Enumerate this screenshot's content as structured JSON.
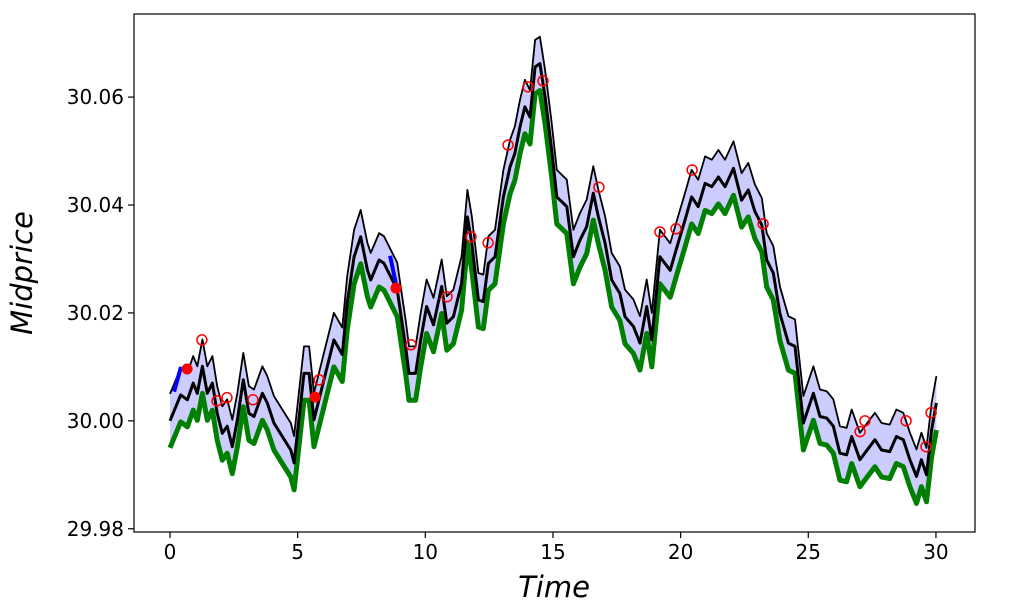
{
  "chart_data": {
    "type": "line",
    "title": "",
    "xlabel": "Time",
    "ylabel": "Midprice",
    "xlim": [
      -1.41,
      31.53
    ],
    "ylim": [
      29.9794,
      30.0754
    ],
    "xticks": [
      "0",
      "5",
      "10",
      "15",
      "20",
      "25",
      "30"
    ],
    "yticks": [
      "29.98",
      "30.00",
      "30.02",
      "30.04",
      "30.06"
    ],
    "grid": false,
    "band_half_width": 0.005,
    "colors": {
      "mid": "#000000",
      "upper": "#000000",
      "band_fill": "#ccccff",
      "lower": "#008000",
      "open_marker": "#ff0000",
      "filled_marker": "#ff0000",
      "segment": "#0000ff"
    },
    "mid": {
      "t": [
        0,
        0.42,
        0.68,
        0.91,
        1.07,
        1.27,
        1.46,
        1.66,
        1.85,
        2.05,
        2.24,
        2.44,
        2.64,
        2.87,
        3.09,
        3.29,
        3.62,
        3.81,
        4.07,
        4.4,
        4.73,
        4.86,
        5.25,
        5.45,
        5.64,
        5.9,
        6.42,
        6.75,
        6.94,
        7.21,
        7.47,
        7.73,
        7.86,
        8.19,
        8.38,
        8.9,
        9.23,
        9.36,
        9.62,
        9.82,
        10.05,
        10.32,
        10.64,
        10.84,
        11.1,
        11.42,
        11.65,
        11.82,
        12.08,
        12.27,
        12.47,
        12.73,
        13.06,
        13.32,
        13.51,
        13.71,
        13.9,
        14.1,
        14.3,
        14.49,
        14.69,
        14.95,
        15.15,
        15.54,
        15.8,
        16.06,
        16.32,
        16.58,
        16.78,
        17.04,
        17.3,
        17.62,
        17.82,
        18.15,
        18.41,
        18.67,
        18.87,
        19.19,
        19.59,
        19.85,
        20.17,
        20.43,
        20.69,
        20.96,
        21.22,
        21.48,
        21.74,
        22.07,
        22.39,
        22.65,
        22.91,
        23.18,
        23.37,
        23.63,
        23.89,
        24.22,
        24.48,
        24.81,
        25.2,
        25.46,
        25.72,
        25.98,
        26.24,
        26.5,
        26.7,
        27.02,
        27.61,
        27.87,
        28.19,
        28.45,
        28.72,
        28.98,
        29.24,
        29.43,
        29.63,
        29.83,
        30.02
      ],
      "price": [
        30.0,
        30.0048,
        30.0039,
        30.007,
        30.0051,
        30.0101,
        30.0051,
        30.007,
        30.0014,
        29.9977,
        29.999,
        29.9952,
        30.0002,
        30.0076,
        30.0014,
        30.0008,
        30.0051,
        30.0033,
        29.9996,
        29.9971,
        29.9946,
        29.9922,
        30.0088,
        30.0088,
        30.0002,
        30.0051,
        30.015,
        30.0123,
        30.0218,
        30.0304,
        30.0341,
        30.028,
        30.0261,
        30.0298,
        30.0292,
        30.0243,
        30.0136,
        30.0088,
        30.0088,
        30.015,
        30.0212,
        30.0178,
        30.0249,
        30.0181,
        30.0193,
        30.0255,
        30.0378,
        30.0329,
        30.0224,
        30.0221,
        30.0292,
        30.0304,
        30.0415,
        30.0471,
        30.0496,
        30.0545,
        30.0582,
        30.0563,
        30.0656,
        30.0662,
        30.06,
        30.0502,
        30.0415,
        30.0397,
        30.0304,
        30.0335,
        30.036,
        30.0422,
        30.0378,
        30.0329,
        30.0261,
        30.0236,
        30.0193,
        30.0175,
        30.0144,
        30.0212,
        30.015,
        30.0304,
        30.0279,
        30.0321,
        30.0372,
        30.0415,
        30.0397,
        30.044,
        30.0434,
        30.0452,
        30.0434,
        30.0468,
        30.0409,
        30.0428,
        30.0388,
        30.0363,
        30.0298,
        30.0274,
        30.0199,
        30.0144,
        30.0138,
        29.9996,
        30.0051,
        30.0008,
        30.0005,
        29.999,
        29.994,
        29.9937,
        29.9971,
        29.9928,
        29.9965,
        29.9946,
        29.9943,
        29.9971,
        29.9965,
        29.9928,
        29.9897,
        29.9928,
        29.99,
        29.9983,
        30.0033
      ]
    },
    "open_markers": [
      [
        1.25,
        30.015
      ],
      [
        1.84,
        30.0037
      ],
      [
        2.23,
        30.0043
      ],
      [
        3.25,
        30.0039
      ],
      [
        5.84,
        30.0076
      ],
      [
        9.44,
        30.0141
      ],
      [
        10.85,
        30.023
      ],
      [
        11.79,
        30.0341
      ],
      [
        12.46,
        30.033
      ],
      [
        13.24,
        30.0511
      ],
      [
        14.02,
        30.0619
      ],
      [
        14.61,
        30.063
      ],
      [
        16.8,
        30.0433
      ],
      [
        19.19,
        30.035
      ],
      [
        19.82,
        30.0356
      ],
      [
        20.45,
        30.0465
      ],
      [
        23.23,
        30.0365
      ],
      [
        27.03,
        29.998
      ],
      [
        27.22,
        30.0
      ],
      [
        28.83,
        30.0
      ],
      [
        29.61,
        29.9952
      ],
      [
        29.81,
        30.0015
      ]
    ],
    "filled_markers": [
      [
        0.67,
        30.0096
      ],
      [
        5.68,
        30.0044
      ],
      [
        8.85,
        30.0246
      ]
    ],
    "segments": [
      [
        [
          0.16,
          30.0054
        ],
        [
          0.43,
          30.01
        ]
      ],
      [
        [
          8.62,
          30.0306
        ],
        [
          8.85,
          30.0254
        ]
      ]
    ]
  }
}
